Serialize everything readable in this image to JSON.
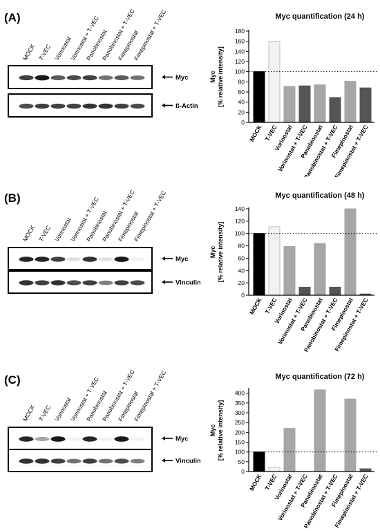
{
  "panels": [
    {
      "label": "(A)",
      "blot": {
        "lanes": [
          "MOCK",
          "T-VEC",
          "Vorinostat",
          "Vorinostat + T-VEC",
          "Panobinostat",
          "Panobinostat + T-VEC",
          "Fimepinostat",
          "Fimepinostat + T-VEC"
        ],
        "bands": [
          {
            "label": "Myc",
            "intensities": [
              0.75,
              0.9,
              0.65,
              0.7,
              0.75,
              0.55,
              0.65,
              0.55
            ]
          },
          {
            "label": "ß-Actin",
            "intensities": [
              0.7,
              0.75,
              0.75,
              0.75,
              0.8,
              0.8,
              0.75,
              0.7
            ]
          }
        ]
      }
    },
    {
      "label": "(B)",
      "blot": {
        "lanes": [
          "MOCK",
          "T-VEC",
          "Vorinostat",
          "Vorinostat + T-VEC",
          "Panobinostat",
          "Panobinostat + T-VEC",
          "Fimepinostat",
          "Fimepinostat + T-VEC"
        ],
        "bands": [
          {
            "label": "Myc",
            "intensities": [
              0.85,
              0.85,
              0.75,
              0.12,
              0.8,
              0.12,
              0.9,
              0.05
            ]
          },
          {
            "label": "Vinculin",
            "intensities": [
              0.8,
              0.75,
              0.8,
              0.7,
              0.75,
              0.5,
              0.75,
              0.7
            ]
          }
        ]
      }
    },
    {
      "label": "(C)",
      "blot": {
        "lanes": [
          "MOCK",
          "T-VEC",
          "Vorinostat",
          "Vorinostat + T-VEC",
          "Panobinostat",
          "Panobinostat + T-VEC",
          "Fimepinostat",
          "Fimepinostat + T-VEC"
        ],
        "bands": [
          {
            "label": "Myc",
            "intensities": [
              0.85,
              0.35,
              0.9,
              0.05,
              0.85,
              0.05,
              0.9,
              0.05
            ]
          },
          {
            "label": "Vinculin",
            "intensities": [
              0.8,
              0.8,
              0.75,
              0.55,
              0.75,
              0.55,
              0.7,
              0.5
            ]
          }
        ]
      }
    }
  ],
  "chart_data": [
    {
      "type": "bar",
      "title": "Myc quantification (24 h)",
      "ylabel": "Myc\n[% relative intensity]",
      "categories": [
        "MOCK",
        "T-VEC",
        "Vorinostat",
        "Vorinostat + T-VEC",
        "Panobinostat",
        "Panobinostat + T-VEC",
        "Fimepinostat",
        "Fimepinostat + T-VEC"
      ],
      "values": [
        100,
        160,
        71,
        72,
        74,
        49,
        81,
        68
      ],
      "bar_colors": [
        "#000000",
        "#f2f2f2",
        "#a6a6a6",
        "#555555",
        "#a6a6a6",
        "#555555",
        "#a6a6a6",
        "#555555"
      ],
      "ylim": [
        0,
        180
      ],
      "yticks": [
        0,
        20,
        40,
        60,
        80,
        100,
        120,
        140,
        160,
        180
      ],
      "reference_line": 100,
      "grid": false
    },
    {
      "type": "bar",
      "title": "Myc quantification (48 h)",
      "ylabel": "Myc\n[% relative intensity]",
      "categories": [
        "MOCK",
        "T-VEC",
        "Vorinostat",
        "Vorinostat + T-VEC",
        "Panobinostat",
        "Panobinostat + T-VEC",
        "Fimepinostat",
        "Fimepinostat + T-VEC"
      ],
      "values": [
        100,
        111,
        79,
        13,
        84,
        13,
        140,
        2
      ],
      "bar_colors": [
        "#000000",
        "#f2f2f2",
        "#a6a6a6",
        "#555555",
        "#a6a6a6",
        "#555555",
        "#a6a6a6",
        "#555555"
      ],
      "ylim": [
        0,
        140
      ],
      "yticks": [
        0,
        20,
        40,
        60,
        80,
        100,
        120,
        140
      ],
      "reference_line": 100,
      "grid": false
    },
    {
      "type": "bar",
      "title": "Myc quantification (72 h)",
      "ylabel": "Myc\n[% relative intensity]",
      "categories": [
        "MOCK",
        "T-VEC",
        "Vorinostat",
        "Vorinostat + T-VEC",
        "Panobinostat",
        "Panobinostat + T-VEC",
        "Fimepinostat",
        "Fimepinostat + T-VEC"
      ],
      "values": [
        100,
        22,
        220,
        0,
        417,
        0,
        370,
        14
      ],
      "bar_colors": [
        "#000000",
        "#f2f2f2",
        "#a6a6a6",
        "#555555",
        "#a6a6a6",
        "#555555",
        "#a6a6a6",
        "#555555"
      ],
      "ylim": [
        0,
        420
      ],
      "yticks": [
        0,
        50,
        100,
        150,
        200,
        250,
        300,
        350,
        400
      ],
      "reference_line": 100,
      "grid": false
    }
  ]
}
